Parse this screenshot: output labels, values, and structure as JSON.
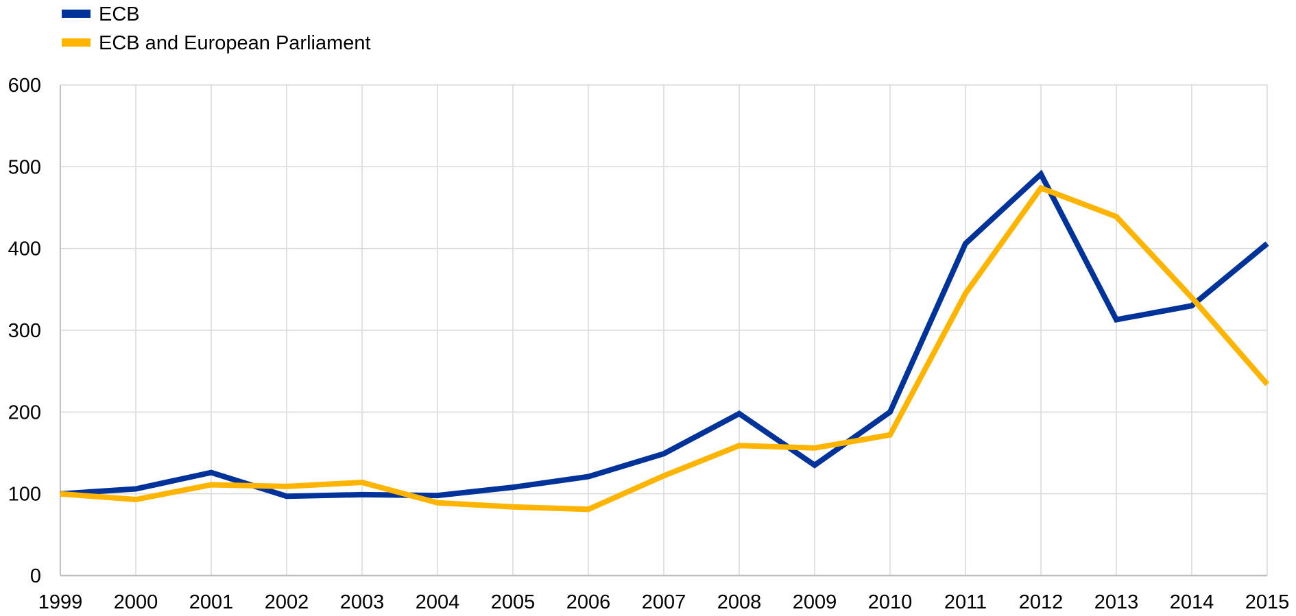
{
  "chart_data": {
    "type": "line",
    "title": "",
    "xlabel": "",
    "ylabel": "",
    "x": [
      "1999",
      "2000",
      "2001",
      "2002",
      "2003",
      "2004",
      "2005",
      "2006",
      "2007",
      "2008",
      "2009",
      "2010",
      "2011",
      "2012",
      "2013",
      "2014",
      "2015"
    ],
    "ylim": [
      0,
      600
    ],
    "yticks": [
      "0",
      "100",
      "200",
      "300",
      "400",
      "500",
      "600"
    ],
    "grid": true,
    "legend_position": "top-left",
    "series": [
      {
        "name": "ECB",
        "color": "#003399",
        "values": [
          100,
          106,
          126,
          97,
          99,
          98,
          108,
          121,
          149,
          198,
          135,
          200,
          406,
          491,
          313,
          330,
          406
        ]
      },
      {
        "name": "ECB and European Parliament",
        "color": "#FFB400",
        "values": [
          100,
          93,
          111,
          109,
          114,
          89,
          84,
          81,
          122,
          159,
          156,
          172,
          345,
          474,
          439,
          340,
          234
        ]
      }
    ],
    "colors": {
      "grid": "#d9d9d9",
      "axis": "#bfbfbf",
      "text": "#000000"
    }
  }
}
